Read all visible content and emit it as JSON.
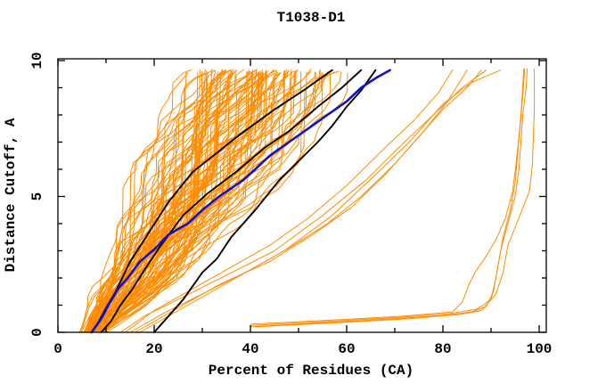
{
  "chart_data": {
    "type": "line",
    "title": "T1038-D1",
    "xlabel": "Percent of Residues (CA)",
    "ylabel": "Distance Cutoff, A",
    "xlim": [
      0,
      101.5
    ],
    "ylim": [
      0,
      10.07
    ],
    "x_major_ticks": [
      0,
      20,
      40,
      60,
      80,
      100
    ],
    "x_minor_ticks": [
      10,
      30,
      50,
      70,
      90
    ],
    "y_major_ticks": [
      0,
      5,
      10
    ],
    "y_minor_ticks": [
      1,
      2,
      3,
      4,
      6,
      7,
      8,
      9
    ],
    "grid": false,
    "legend_position": "none",
    "colors": {
      "prediction": "#ff8c00",
      "reference": "#000000",
      "highlight": "#1111cc",
      "axis": "#000000",
      "background": "#ffffff"
    },
    "series": [
      {
        "name": "prediction-bundle",
        "role": "predictions",
        "color_key": "prediction",
        "count": 105,
        "note": "dense bundle of model curves; envelope of x-range (percent residues) at each distance cutoff",
        "envelope": {
          "cutoffs": [
            0,
            0.5,
            1,
            1.5,
            2,
            3,
            4,
            5,
            6,
            7,
            8,
            9,
            9.65
          ],
          "x_min": [
            4.5,
            5,
            5.5,
            6,
            7,
            8.5,
            10,
            12,
            14,
            16.5,
            19,
            20.5,
            22
          ],
          "x_max": [
            12,
            18,
            24,
            29,
            34,
            42,
            50,
            57,
            63,
            68,
            72,
            76,
            78
          ]
        }
      },
      {
        "name": "right-tail-models",
        "role": "predictions",
        "color_key": "prediction",
        "curves": [
          [
            [
              14,
              0
            ],
            [
              20,
              0.8
            ],
            [
              28,
              1.6
            ],
            [
              36,
              2.4
            ],
            [
              44,
              3.2
            ],
            [
              52,
              4.2
            ],
            [
              60,
              5.4
            ],
            [
              68,
              6.8
            ],
            [
              74,
              7.8
            ],
            [
              79,
              8.8
            ],
            [
              82,
              9.65
            ]
          ],
          [
            [
              15,
              0
            ],
            [
              22,
              0.7
            ],
            [
              31,
              1.5
            ],
            [
              40,
              2.3
            ],
            [
              48,
              3.1
            ],
            [
              56,
              4.0
            ],
            [
              63,
              5.0
            ],
            [
              70,
              6.2
            ],
            [
              76,
              7.4
            ],
            [
              81,
              8.5
            ],
            [
              85,
              9.65
            ]
          ],
          [
            [
              16,
              0
            ],
            [
              25,
              0.9
            ],
            [
              34,
              1.8
            ],
            [
              44,
              2.6
            ],
            [
              53,
              3.6
            ],
            [
              61,
              4.6
            ],
            [
              68,
              5.8
            ],
            [
              74,
              7.0
            ],
            [
              80,
              8.2
            ],
            [
              85,
              9.0
            ],
            [
              88,
              9.65
            ]
          ],
          [
            [
              13,
              0
            ],
            [
              18,
              0.6
            ],
            [
              26,
              1.3
            ],
            [
              35,
              2.1
            ],
            [
              45,
              3.0
            ],
            [
              55,
              4.3
            ],
            [
              64,
              5.6
            ],
            [
              72,
              7.0
            ],
            [
              78,
              8.0
            ],
            [
              84,
              9.0
            ],
            [
              89,
              9.65
            ]
          ],
          [
            [
              17,
              0
            ],
            [
              27,
              1.0
            ],
            [
              37,
              2.0
            ],
            [
              47,
              3.0
            ],
            [
              57,
              4.3
            ],
            [
              66,
              5.8
            ],
            [
              73,
              7.0
            ],
            [
              80,
              8.4
            ],
            [
              86,
              9.2
            ],
            [
              92,
              9.65
            ]
          ]
        ]
      },
      {
        "name": "outlier-models",
        "role": "predictions",
        "color_key": "prediction",
        "curves": [
          [
            [
              40,
              0.2
            ],
            [
              55,
              0.35
            ],
            [
              70,
              0.5
            ],
            [
              80,
              0.62
            ],
            [
              86,
              0.75
            ],
            [
              89,
              0.95
            ],
            [
              90.5,
              1.5
            ],
            [
              91.5,
              2.5
            ],
            [
              92.5,
              3.5
            ],
            [
              94,
              4.5
            ],
            [
              95,
              5.5
            ],
            [
              95.5,
              6.5
            ],
            [
              96,
              7.5
            ],
            [
              96.5,
              8.5
            ],
            [
              97,
              9.7
            ]
          ],
          [
            [
              40,
              0.25
            ],
            [
              56,
              0.4
            ],
            [
              71,
              0.55
            ],
            [
              81,
              0.68
            ],
            [
              87,
              0.85
            ],
            [
              90,
              1.2
            ],
            [
              91,
              2.0
            ],
            [
              92,
              3.0
            ],
            [
              93.5,
              4.0
            ],
            [
              95,
              5.0
            ],
            [
              95.8,
              6.0
            ],
            [
              96.2,
              7.0
            ],
            [
              96.6,
              8.0
            ],
            [
              97.3,
              9.0
            ],
            [
              97.5,
              9.7
            ]
          ],
          [
            [
              40,
              0.3
            ],
            [
              57,
              0.45
            ],
            [
              72,
              0.6
            ],
            [
              82,
              0.75
            ],
            [
              84,
              1.1
            ],
            [
              85.5,
              1.8
            ],
            [
              87,
              2.3
            ],
            [
              89,
              2.8
            ],
            [
              91,
              3.4
            ],
            [
              93,
              4.2
            ],
            [
              94.5,
              5.2
            ],
            [
              95.2,
              6.2
            ],
            [
              95.8,
              7.2
            ],
            [
              96.3,
              8.2
            ],
            [
              96.8,
              9.7
            ]
          ],
          [
            [
              41,
              0.2
            ],
            [
              58,
              0.35
            ],
            [
              73,
              0.5
            ],
            [
              83,
              0.65
            ],
            [
              88,
              0.8
            ],
            [
              91,
              1.4
            ],
            [
              92.5,
              2.2
            ],
            [
              93.5,
              3.2
            ],
            [
              96,
              4.3
            ],
            [
              98,
              5.2
            ],
            [
              98.6,
              6.2
            ],
            [
              98.8,
              7.2
            ],
            [
              99,
              8.2
            ],
            [
              99,
              9.0
            ],
            [
              99,
              9.7
            ]
          ]
        ]
      },
      {
        "name": "reference-models",
        "role": "reference",
        "color_key": "reference",
        "curves": [
          [
            [
              7,
              0
            ],
            [
              8.5,
              0.4
            ],
            [
              10,
              0.9
            ],
            [
              12,
              1.5
            ],
            [
              15,
              2.6
            ],
            [
              19,
              3.7
            ],
            [
              23,
              4.8
            ],
            [
              28,
              5.9
            ],
            [
              33,
              6.6
            ],
            [
              38,
              7.3
            ],
            [
              45,
              8.2
            ],
            [
              51,
              8.9
            ],
            [
              57,
              9.65
            ]
          ],
          [
            [
              9,
              0
            ],
            [
              11,
              0.4
            ],
            [
              13,
              1.0
            ],
            [
              15.5,
              1.6
            ],
            [
              18,
              2.3
            ],
            [
              21,
              3.1
            ],
            [
              26,
              4.3
            ],
            [
              31,
              5.1
            ],
            [
              37,
              5.9
            ],
            [
              43,
              6.8
            ],
            [
              48,
              7.4
            ],
            [
              54,
              8.3
            ],
            [
              59,
              9.0
            ],
            [
              63,
              9.65
            ]
          ],
          [
            [
              20,
              0
            ],
            [
              23,
              0.6
            ],
            [
              26,
              1.2
            ],
            [
              30,
              2.2
            ],
            [
              33,
              2.7
            ],
            [
              36,
              3.5
            ],
            [
              41,
              4.5
            ],
            [
              46,
              5.6
            ],
            [
              50,
              6.3
            ],
            [
              54,
              7.0
            ],
            [
              57,
              7.6
            ],
            [
              60,
              8.3
            ],
            [
              63,
              8.9
            ],
            [
              66,
              9.65
            ]
          ]
        ]
      },
      {
        "name": "highlighted-model",
        "role": "highlight",
        "color_key": "highlight",
        "curves": [
          [
            [
              7,
              0
            ],
            [
              9,
              0.5
            ],
            [
              10.5,
              1.0
            ],
            [
              12.5,
              1.6
            ],
            [
              14.5,
              2.0
            ],
            [
              17,
              2.6
            ],
            [
              20,
              3.05
            ],
            [
              23,
              3.6
            ],
            [
              27,
              4.0
            ],
            [
              30,
              4.5
            ],
            [
              33.5,
              5.0
            ],
            [
              36,
              5.3
            ],
            [
              38.5,
              5.6
            ],
            [
              41,
              6.0
            ],
            [
              44,
              6.5
            ],
            [
              48,
              7.0
            ],
            [
              52,
              7.5
            ],
            [
              56,
              8.0
            ],
            [
              60,
              8.5
            ],
            [
              63,
              9.0
            ],
            [
              66,
              9.35
            ],
            [
              69,
              9.65
            ]
          ]
        ]
      }
    ]
  }
}
